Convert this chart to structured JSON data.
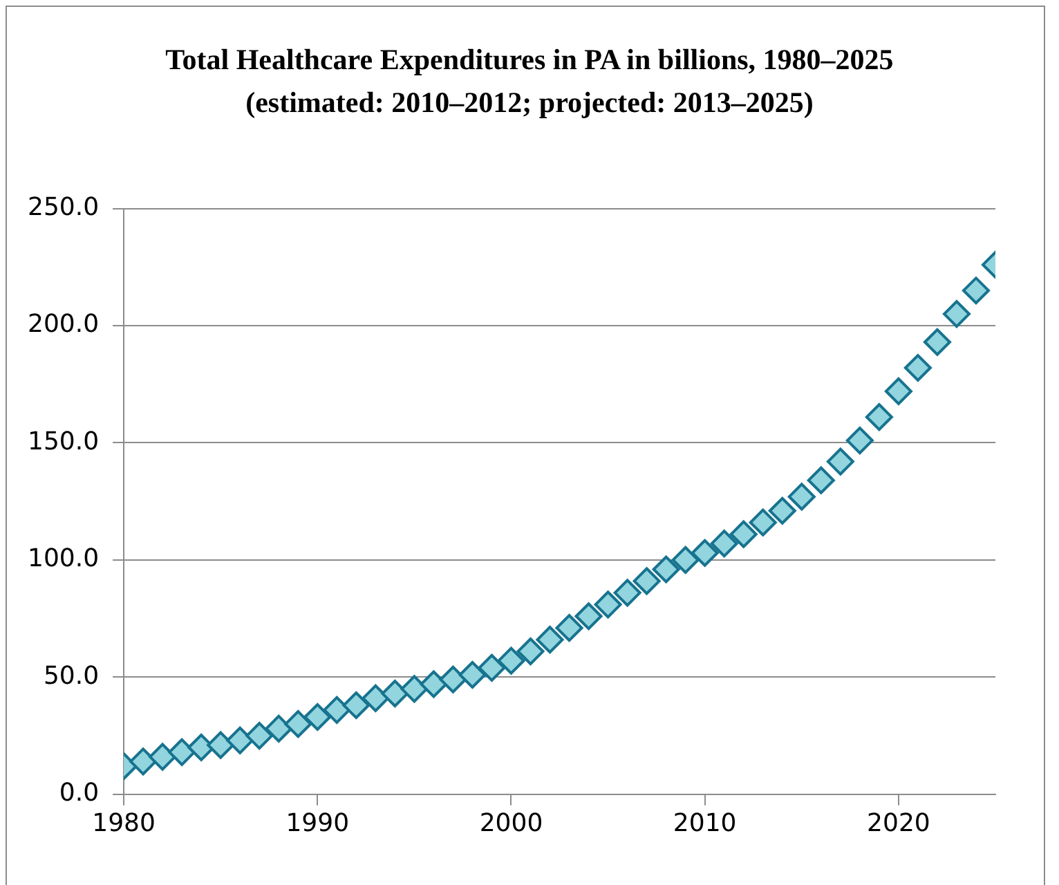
{
  "chart_data": {
    "type": "scatter",
    "title": "Total Healthcare Expenditures in PA in billions, 1980–2025  (estimated: 2010–2012; projected: 2013–2025)",
    "x": [
      1980,
      1981,
      1982,
      1983,
      1984,
      1985,
      1986,
      1987,
      1988,
      1989,
      1990,
      1991,
      1992,
      1993,
      1994,
      1995,
      1996,
      1997,
      1998,
      1999,
      2000,
      2001,
      2002,
      2003,
      2004,
      2005,
      2006,
      2007,
      2008,
      2009,
      2010,
      2011,
      2012,
      2013,
      2014,
      2015,
      2016,
      2017,
      2018,
      2019,
      2020,
      2021,
      2022,
      2023,
      2024,
      2025
    ],
    "series": [
      {
        "color": "#92d5de",
        "values": [
          12,
          14,
          16,
          18,
          20,
          21,
          23,
          25,
          28,
          30,
          33,
          36,
          38,
          41,
          43,
          45,
          47,
          49,
          51,
          54,
          57,
          61,
          66,
          71,
          76,
          81,
          86,
          91,
          96,
          100,
          103,
          107,
          111,
          116,
          121,
          127,
          134,
          142,
          151,
          161,
          172,
          182,
          193,
          205,
          215,
          226
        ]
      }
    ],
    "xlim": [
      1980,
      2025
    ],
    "xticks": [
      1980,
      1990,
      2000,
      2010,
      2020
    ],
    "ylim": [
      0,
      250
    ],
    "yticks": [
      {
        "value": 0,
        "label": "0.0"
      },
      {
        "value": 50,
        "label": "50.0"
      },
      {
        "value": 100,
        "label": "100.0"
      },
      {
        "value": 150,
        "label": "150.0"
      },
      {
        "value": 200,
        "label": "200.0"
      },
      {
        "value": 250,
        "label": "250.0"
      }
    ],
    "grid": "y",
    "legend": false,
    "marker": "diamond"
  }
}
